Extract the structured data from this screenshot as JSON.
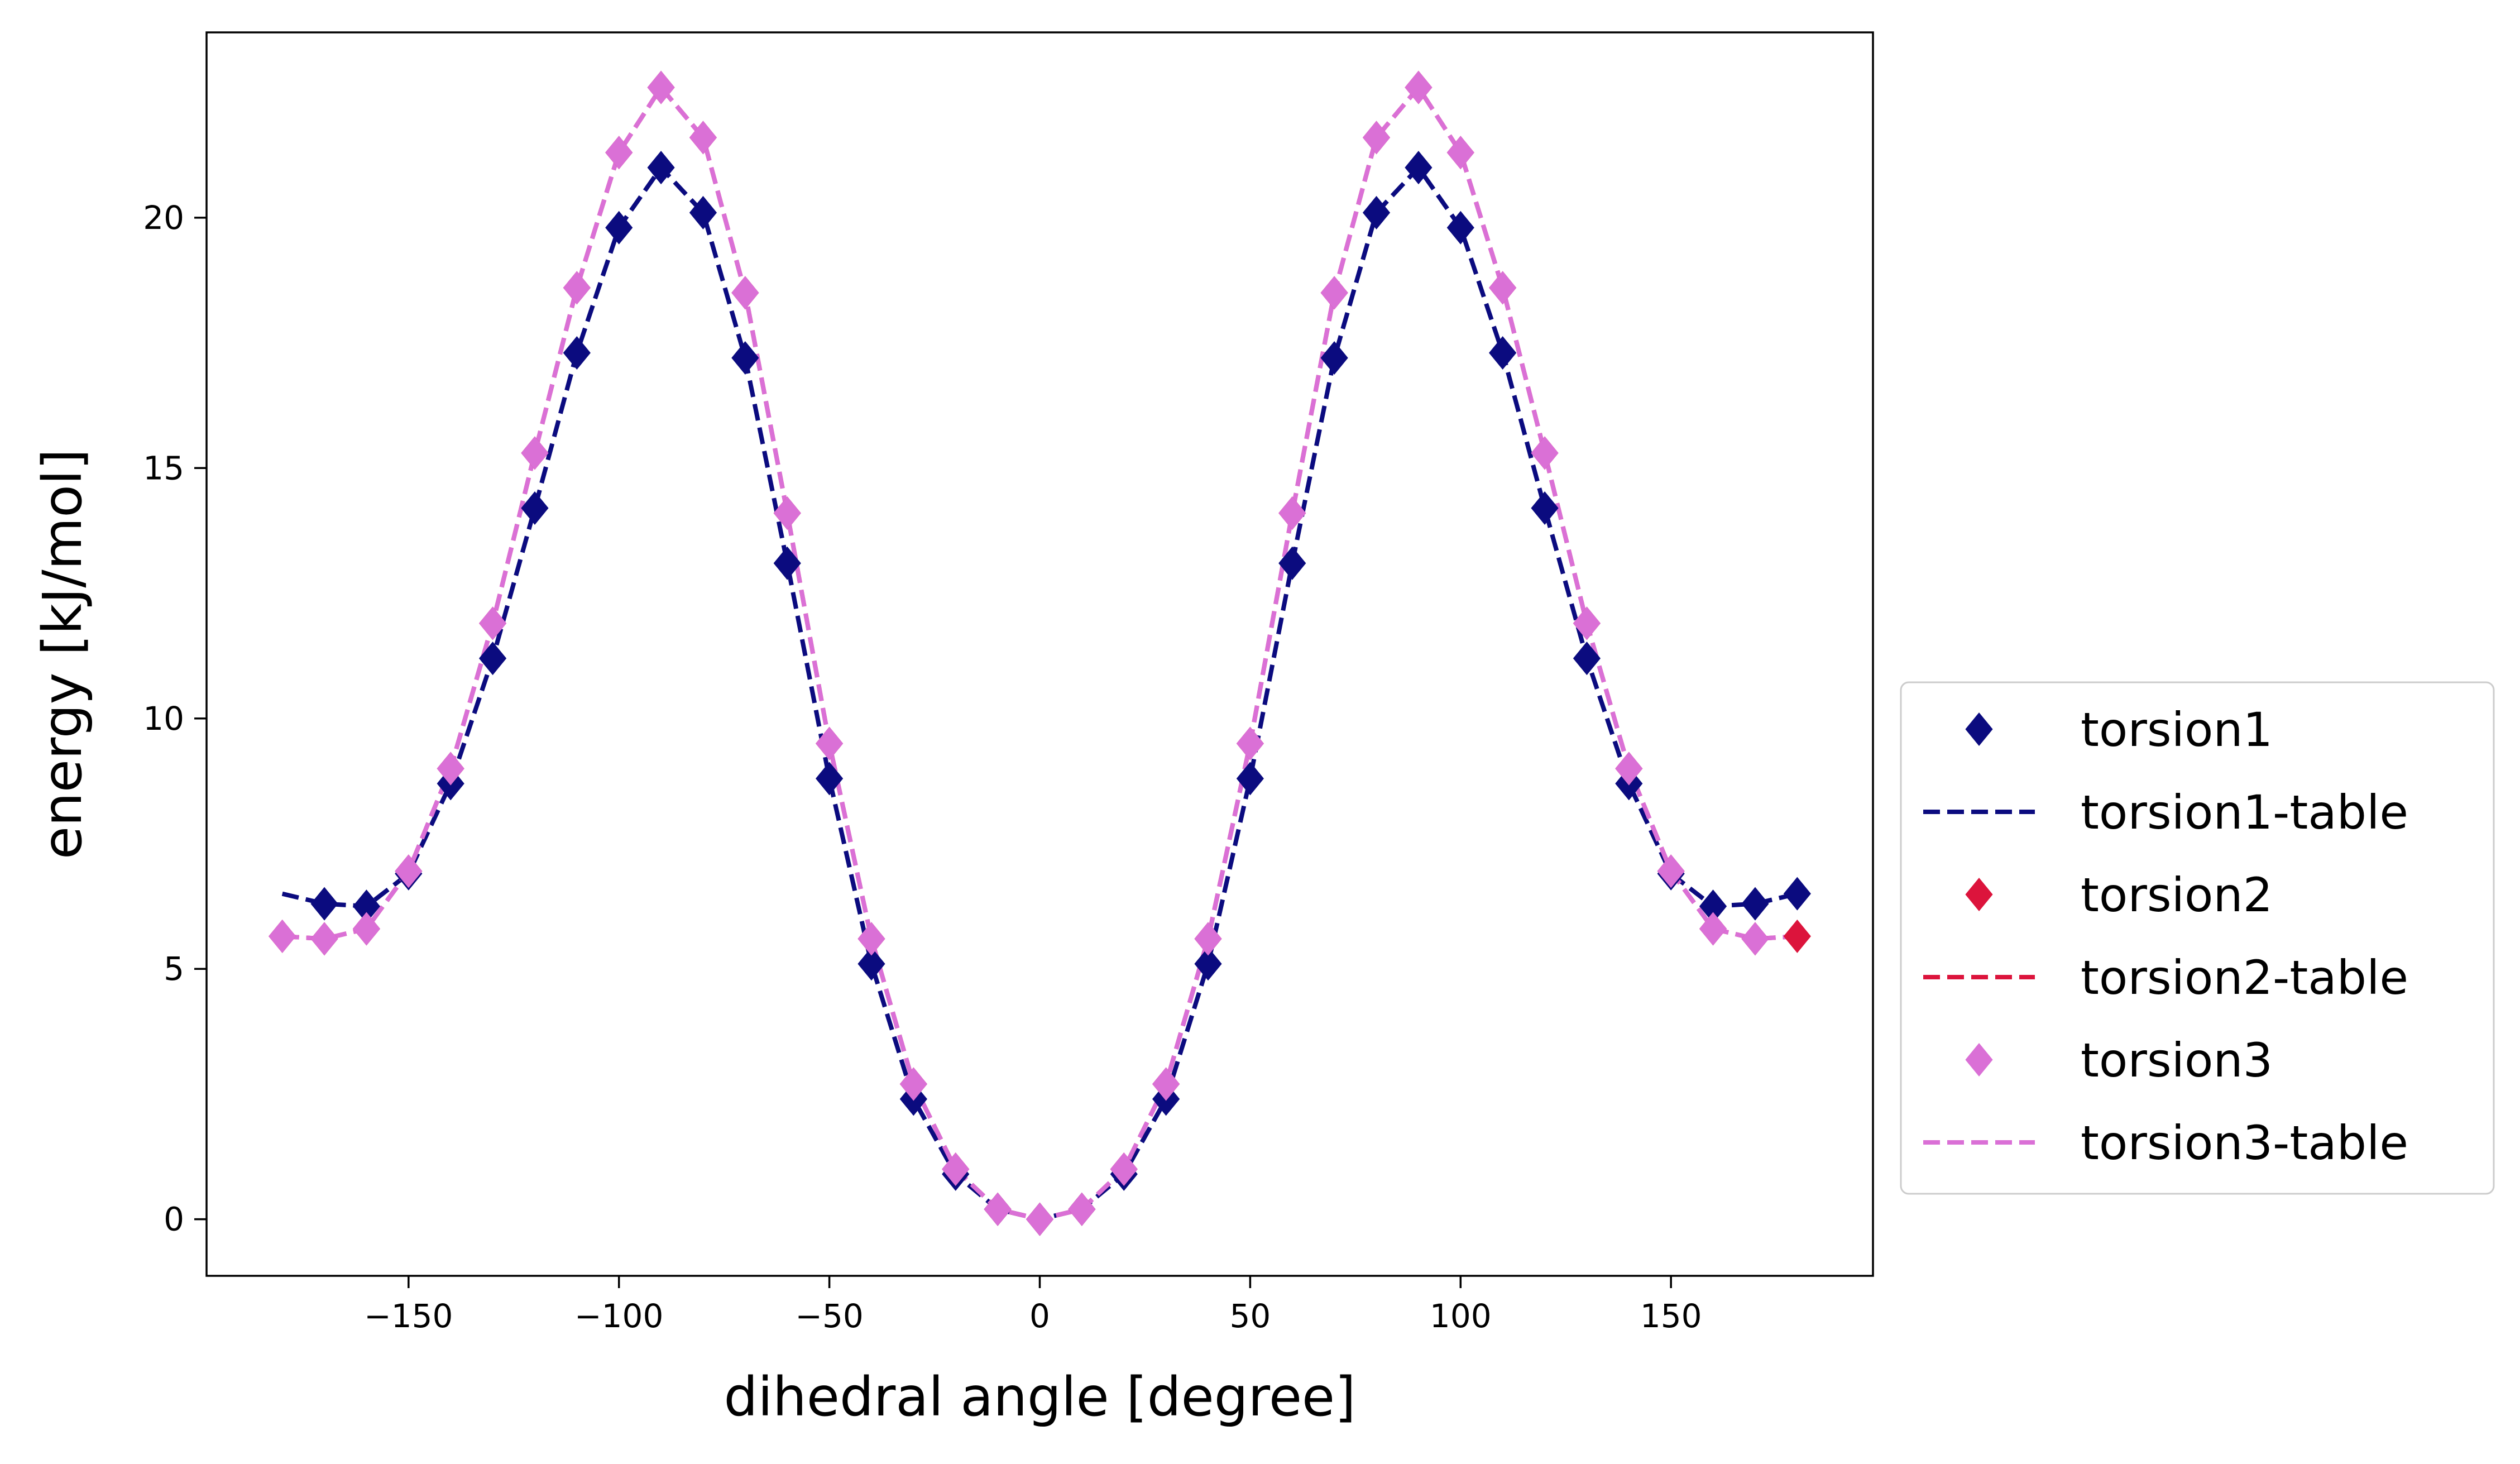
{
  "chart_data": {
    "type": "line",
    "xlabel": "dihedral angle [degree]",
    "ylabel": "energy [kJ/mol]",
    "xlim": [
      -198,
      198
    ],
    "ylim": [
      -1.13,
      23.7
    ],
    "xticks": [
      -150,
      -100,
      -50,
      0,
      50,
      100,
      150
    ],
    "xtick_labels": [
      "−150",
      "−100",
      "−50",
      "0",
      "50",
      "100",
      "150"
    ],
    "yticks": [
      0,
      5,
      10,
      15,
      20
    ],
    "ytick_labels": [
      "0",
      "5",
      "10",
      "15",
      "20"
    ],
    "legend_position": "center-left outside right",
    "series": [
      {
        "name": "torsion1",
        "kind": "markers",
        "marker": "diamond",
        "color": "#0b0b7f",
        "x": [
          -170,
          -160,
          -150,
          -140,
          -130,
          -120,
          -110,
          -100,
          -90,
          -80,
          -70,
          -60,
          -50,
          -40,
          -30,
          -20,
          -10,
          0,
          10,
          20,
          30,
          40,
          50,
          60,
          70,
          80,
          90,
          100,
          110,
          120,
          130,
          140,
          150,
          160,
          170,
          180
        ],
        "y": [
          6.3,
          6.25,
          6.9,
          8.7,
          11.2,
          14.2,
          17.3,
          19.8,
          21.0,
          20.1,
          17.2,
          13.1,
          8.8,
          5.1,
          2.4,
          0.9,
          0.2,
          0.0,
          0.2,
          0.9,
          2.4,
          5.1,
          8.8,
          13.1,
          17.2,
          20.1,
          21.0,
          19.8,
          17.3,
          14.2,
          11.2,
          8.7,
          6.9,
          6.25,
          6.3,
          6.5
        ]
      },
      {
        "name": "torsion1-table",
        "kind": "line",
        "color": "#0b0b7f",
        "dash": "dashed",
        "x": [
          -180,
          -170,
          -160,
          -150,
          -140,
          -130,
          -120,
          -110,
          -100,
          -90,
          -80,
          -70,
          -60,
          -50,
          -40,
          -30,
          -20,
          -10,
          0,
          10,
          20,
          30,
          40,
          50,
          60,
          70,
          80,
          90,
          100,
          110,
          120,
          130,
          140,
          150,
          160,
          170,
          180
        ],
        "y": [
          6.5,
          6.3,
          6.25,
          6.9,
          8.7,
          11.2,
          14.2,
          17.3,
          19.8,
          21.0,
          20.1,
          17.2,
          13.1,
          8.8,
          5.1,
          2.4,
          0.9,
          0.2,
          0.0,
          0.2,
          0.9,
          2.4,
          5.1,
          8.8,
          13.1,
          17.2,
          20.1,
          21.0,
          19.8,
          17.3,
          14.2,
          11.2,
          8.7,
          6.9,
          6.25,
          6.3,
          6.5
        ]
      },
      {
        "name": "torsion2",
        "kind": "markers",
        "marker": "diamond",
        "color": "#dc143c",
        "x": [
          -180,
          -170,
          -160,
          -150,
          -140,
          -130,
          -120,
          -110,
          -100,
          -90,
          -80,
          -70,
          -60,
          -50,
          -40,
          -30,
          -20,
          -10,
          0,
          10,
          20,
          30,
          40,
          50,
          60,
          70,
          80,
          90,
          100,
          110,
          120,
          130,
          140,
          150,
          160,
          170,
          180
        ],
        "y": [
          5.65,
          5.6,
          5.8,
          6.95,
          9.0,
          11.9,
          15.3,
          18.6,
          21.3,
          22.6,
          21.6,
          18.5,
          14.1,
          9.5,
          5.6,
          2.7,
          1.0,
          0.2,
          0.0,
          0.2,
          1.0,
          2.7,
          5.6,
          9.5,
          14.1,
          18.5,
          21.6,
          22.6,
          21.3,
          18.6,
          15.3,
          11.9,
          9.0,
          6.95,
          5.8,
          5.6,
          5.65
        ]
      },
      {
        "name": "torsion2-table",
        "kind": "line",
        "color": "#dc143c",
        "dash": "dashed",
        "x": [
          -180,
          -170,
          -160,
          -150,
          -140,
          -130,
          -120,
          -110,
          -100,
          -90,
          -80,
          -70,
          -60,
          -50,
          -40,
          -30,
          -20,
          -10,
          0,
          10,
          20,
          30,
          40,
          50,
          60,
          70,
          80,
          90,
          100,
          110,
          120,
          130,
          140,
          150,
          160,
          170,
          180
        ],
        "y": [
          5.65,
          5.6,
          5.8,
          6.95,
          9.0,
          11.9,
          15.3,
          18.6,
          21.3,
          22.6,
          21.6,
          18.5,
          14.1,
          9.5,
          5.6,
          2.7,
          1.0,
          0.2,
          0.0,
          0.2,
          1.0,
          2.7,
          5.6,
          9.5,
          14.1,
          18.5,
          21.6,
          22.6,
          21.3,
          18.6,
          15.3,
          11.9,
          9.0,
          6.95,
          5.8,
          5.6,
          5.65
        ]
      },
      {
        "name": "torsion3",
        "kind": "markers",
        "marker": "diamond",
        "color": "#da70d6",
        "x": [
          -180,
          -170,
          -160,
          -150,
          -140,
          -130,
          -120,
          -110,
          -100,
          -90,
          -80,
          -70,
          -60,
          -50,
          -40,
          -30,
          -20,
          -10,
          0,
          10,
          20,
          30,
          40,
          50,
          60,
          70,
          80,
          90,
          100,
          110,
          120,
          130,
          140,
          150,
          160,
          170
        ],
        "y": [
          5.65,
          5.6,
          5.8,
          6.95,
          9.0,
          11.9,
          15.3,
          18.6,
          21.3,
          22.6,
          21.6,
          18.5,
          14.1,
          9.5,
          5.6,
          2.7,
          1.0,
          0.2,
          0.0,
          0.2,
          1.0,
          2.7,
          5.6,
          9.5,
          14.1,
          18.5,
          21.6,
          22.6,
          21.3,
          18.6,
          15.3,
          11.9,
          9.0,
          6.95,
          5.8,
          5.6
        ]
      },
      {
        "name": "torsion3-table",
        "kind": "line",
        "color": "#da70d6",
        "dash": "dashed",
        "x": [
          -180,
          -170,
          -160,
          -150,
          -140,
          -130,
          -120,
          -110,
          -100,
          -90,
          -80,
          -70,
          -60,
          -50,
          -40,
          -30,
          -20,
          -10,
          0,
          10,
          20,
          30,
          40,
          50,
          60,
          70,
          80,
          90,
          100,
          110,
          120,
          130,
          140,
          150,
          160,
          170,
          180
        ],
        "y": [
          5.65,
          5.6,
          5.8,
          6.95,
          9.0,
          11.9,
          15.3,
          18.6,
          21.3,
          22.6,
          21.6,
          18.5,
          14.1,
          9.5,
          5.6,
          2.7,
          1.0,
          0.2,
          0.0,
          0.2,
          1.0,
          2.7,
          5.6,
          9.5,
          14.1,
          18.5,
          21.6,
          22.6,
          21.3,
          18.6,
          15.3,
          11.9,
          9.0,
          6.95,
          5.8,
          5.6,
          5.65
        ]
      }
    ]
  }
}
